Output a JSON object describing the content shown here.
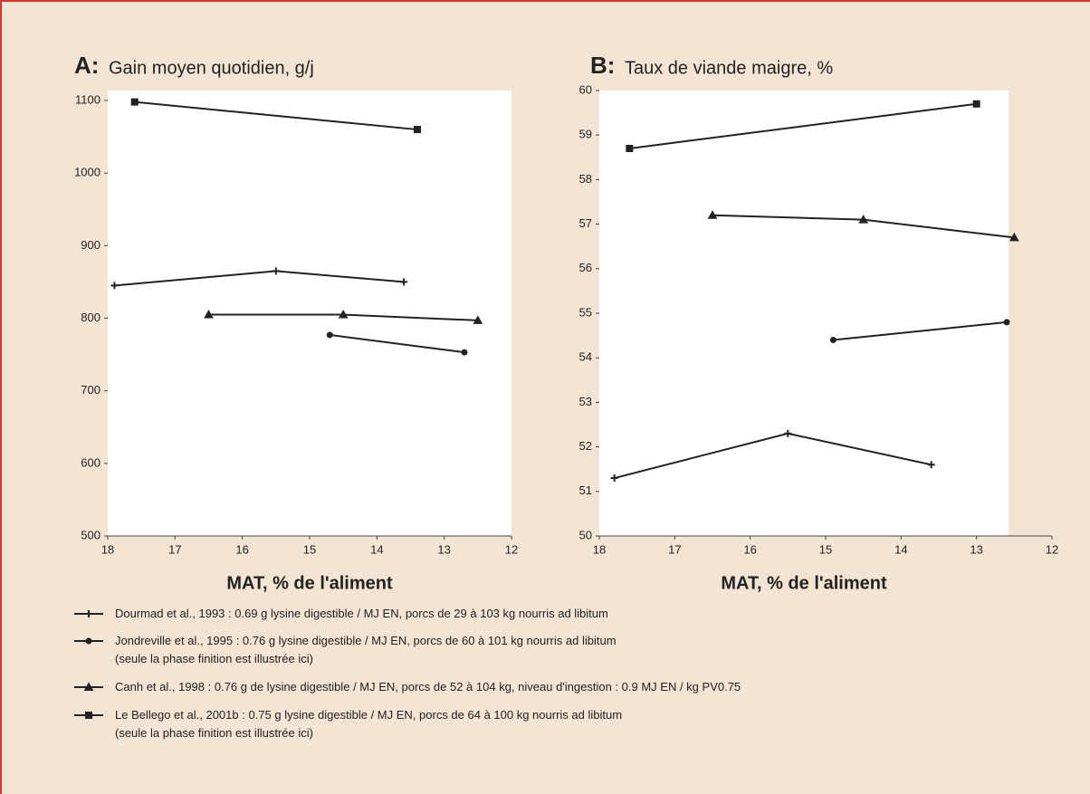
{
  "chart_data": [
    {
      "type": "line",
      "label": "A:",
      "title": "Gain moyen quotidien, g/j",
      "xlabel": "MAT, % de l'aliment",
      "xlim": [
        18,
        12
      ],
      "ylim": [
        500,
        1100
      ],
      "xticks": [
        18,
        17,
        16,
        15,
        14,
        13,
        12
      ],
      "yticks": [
        500,
        600,
        700,
        800,
        900,
        1000,
        1100
      ],
      "series": [
        {
          "name": "Dourmad et al., 1993 : 0.69 g lysine digestible / MJ EN, porcs de 29 à 103 kg nourris ad libitum",
          "marker": "plus",
          "color": "#222222",
          "x": [
            17.9,
            15.5,
            13.6
          ],
          "values": [
            845,
            865,
            850
          ]
        },
        {
          "name": "Jondreville et al., 1995 : 0.76 g lysine digestible / MJ EN, porcs de 60 à 101 kg nourris ad libitum\n(seule la phase finition est illustrée ici)",
          "marker": "circle",
          "color": "#222222",
          "x": [
            14.7,
            12.7
          ],
          "values": [
            777,
            753
          ]
        },
        {
          "name": "Canh et al., 1998 : 0.76 g de lysine digestible / MJ EN, porcs de 52 à 104 kg, niveau d'ingestion : 0.9 MJ EN / kg PV0.75",
          "marker": "triangle",
          "color": "#222222",
          "x": [
            16.5,
            14.5,
            12.5
          ],
          "values": [
            805,
            805,
            797
          ]
        },
        {
          "name": "Le Bellego et al., 2001b : 0.75 g lysine digestible / MJ EN, porcs de 64 à 100 kg nourris ad libitum\n(seule la phase finition est illustrée ici)",
          "marker": "square",
          "color": "#222222",
          "x": [
            17.6,
            13.4
          ],
          "values": [
            1098,
            1060
          ]
        }
      ]
    },
    {
      "type": "line",
      "label": "B:",
      "title": "Taux de viande maigre, %",
      "xlabel": "MAT, % de l'aliment",
      "xlim": [
        18,
        12
      ],
      "ylim": [
        50,
        60
      ],
      "xticks": [
        18,
        17,
        16,
        15,
        14,
        13,
        12
      ],
      "yticks": [
        50,
        51,
        52,
        53,
        54,
        55,
        56,
        57,
        58,
        59,
        60
      ],
      "series": [
        {
          "marker": "plus",
          "color": "#222222",
          "x": [
            17.8,
            15.5,
            13.6
          ],
          "values": [
            51.3,
            52.3,
            51.6
          ]
        },
        {
          "marker": "circle",
          "color": "#222222",
          "x": [
            14.9,
            12.6
          ],
          "values": [
            54.4,
            54.8
          ]
        },
        {
          "marker": "triangle",
          "color": "#222222",
          "x": [
            16.5,
            14.5,
            12.5
          ],
          "values": [
            57.2,
            57.1,
            56.7
          ]
        },
        {
          "marker": "square",
          "color": "#222222",
          "x": [
            17.6,
            13.0
          ],
          "values": [
            58.7,
            59.7
          ]
        }
      ]
    }
  ]
}
